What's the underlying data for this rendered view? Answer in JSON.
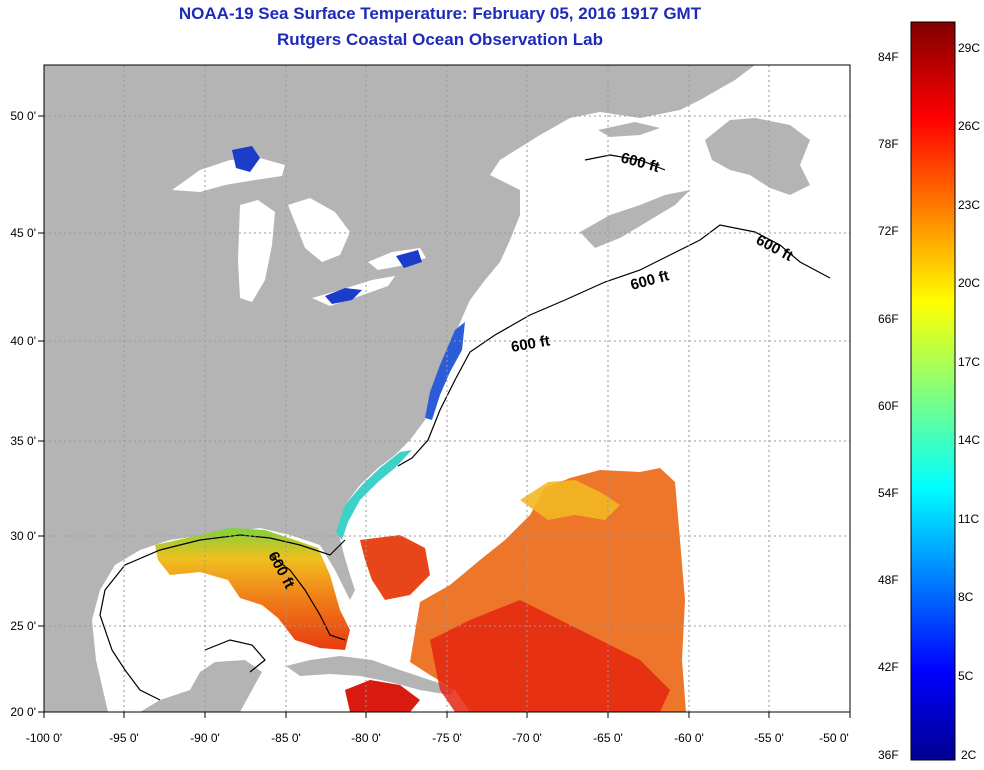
{
  "title": "NOAA-19 Sea Surface Temperature:  February 05, 2016 1917 GMT",
  "subtitle": "Rutgers Coastal Ocean Observation Lab",
  "map": {
    "lon_ticks": [
      "-100 0'",
      "-95 0'",
      "-90 0'",
      "-85 0'",
      "-80 0'",
      "-75 0'",
      "-70 0'",
      "-65 0'",
      "-60 0'",
      "-55 0'",
      "-50 0'"
    ],
    "lat_ticks": [
      "50 0'",
      "45 0'",
      "40 0'",
      "35 0'",
      "30 0'",
      "25 0'",
      "20 0'"
    ],
    "contour_label": "600 ft",
    "colors": {
      "land": "#b4b4b4",
      "ocean": "#ffffff",
      "grid": "#9a9a9a"
    }
  },
  "colorbar": {
    "fahrenheit": [
      "84F",
      "78F",
      "72F",
      "66F",
      "60F",
      "54F",
      "48F",
      "42F",
      "36F"
    ],
    "celsius": [
      "29C",
      "26C",
      "23C",
      "20C",
      "17C",
      "14C",
      "11C",
      "8C",
      "5C",
      "2C"
    ]
  }
}
